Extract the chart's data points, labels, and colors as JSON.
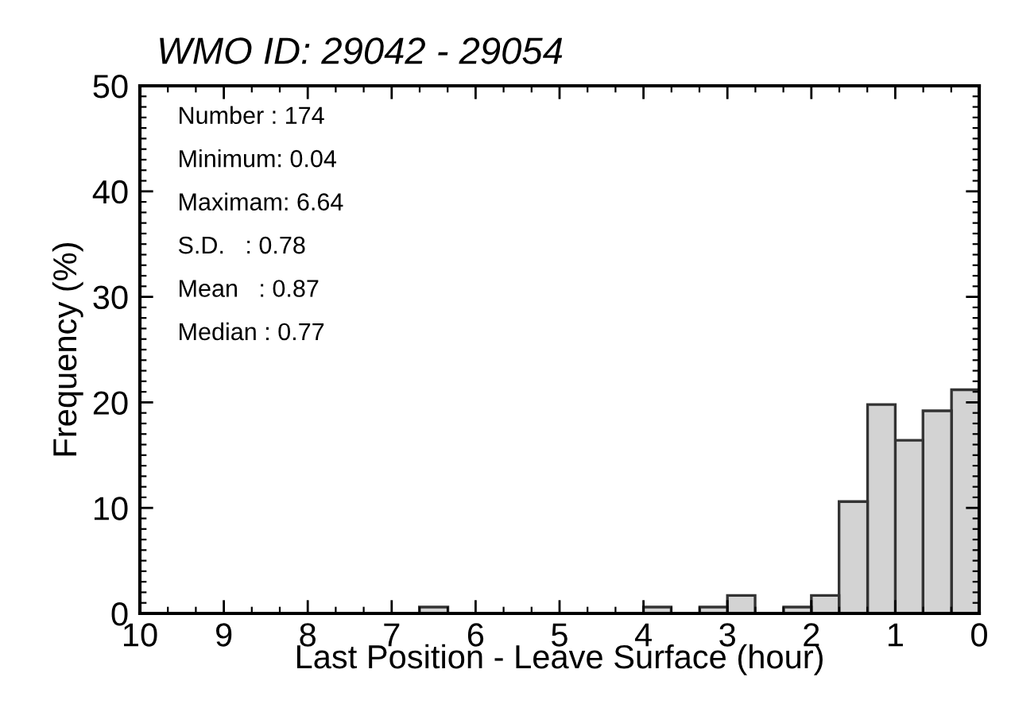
{
  "chart_data": {
    "type": "histogram",
    "title": "WMO ID: 29042 - 29054",
    "xlabel": "Last Position - Leave Surface (hour)",
    "ylabel": "Frequency (%)",
    "bins": [
      0,
      0.33,
      0.67,
      1,
      1.33,
      1.67,
      2,
      2.33,
      2.67,
      3,
      3.33,
      3.67,
      4,
      6.33,
      6.67
    ],
    "values": [
      21.2,
      19.2,
      16.4,
      19.8,
      10.6,
      1.7,
      0.6,
      0,
      1.7,
      0.6,
      0,
      0.6,
      0,
      0.6
    ],
    "color": "#d3d3d3",
    "xlim": [
      10,
      0
    ],
    "xticks": [
      10,
      9,
      8,
      7,
      6,
      5,
      4,
      3,
      2,
      1,
      0
    ],
    "ylim": [
      0,
      50
    ],
    "yticks": [
      0,
      10,
      20,
      30,
      40,
      50
    ],
    "grid": false,
    "legend": false,
    "annotations": [
      "Number : 174",
      "Minimum: 0.04",
      "Maximam: 6.64",
      "S.D.   : 0.78",
      "Mean   : 0.87",
      "Median : 0.77"
    ]
  }
}
